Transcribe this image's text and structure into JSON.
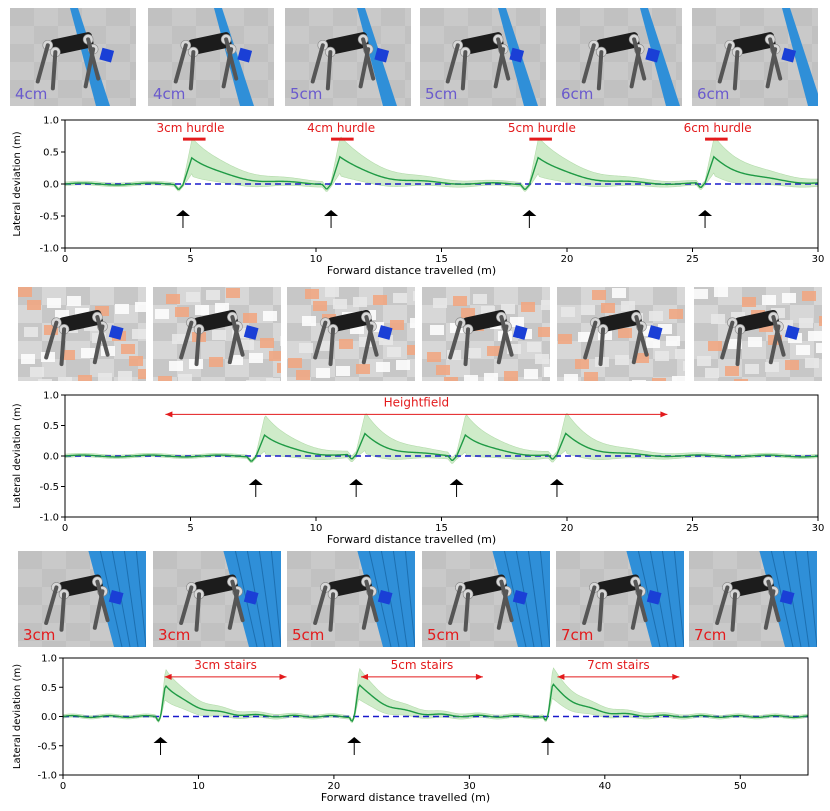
{
  "colors": {
    "mean_line": "#1f9a45",
    "band": "#bfe5b8",
    "zero_line": "#1a1acc",
    "annotation": "#e31a1c",
    "hurdle_label": "#6a5acd",
    "stairs_label": "#e31a1c",
    "obstacle_blue": "#2f8fd8",
    "terrain_orange": "#f2a47e",
    "cube": "#1a3fd6"
  },
  "rows": [
    {
      "tiles": [
        {
          "label": "4cm",
          "bg": "#c9c9c9",
          "obstacle": "bar"
        },
        {
          "label": "4cm",
          "bg": "#c9c9c9",
          "obstacle": "bar"
        },
        {
          "label": "5cm",
          "bg": "#c9c9c9",
          "obstacle": "bar"
        },
        {
          "label": "5cm",
          "bg": "#c9c9c9",
          "obstacle": "bar"
        },
        {
          "label": "6cm",
          "bg": "#c9c9c9",
          "obstacle": "bar"
        },
        {
          "label": "6cm",
          "bg": "#c9c9c9",
          "obstacle": "bar"
        }
      ]
    },
    {
      "tiles": [
        {
          "label": "",
          "bg": "#d7d7d7",
          "obstacle": "heightfield"
        },
        {
          "label": "",
          "bg": "#d7d7d7",
          "obstacle": "heightfield"
        },
        {
          "label": "",
          "bg": "#d7d7d7",
          "obstacle": "heightfield"
        },
        {
          "label": "",
          "bg": "#d7d7d7",
          "obstacle": "heightfield"
        },
        {
          "label": "",
          "bg": "#d7d7d7",
          "obstacle": "heightfield"
        },
        {
          "label": "",
          "bg": "#d7d7d7",
          "obstacle": "heightfield"
        }
      ]
    },
    {
      "tiles": [
        {
          "label": "3cm",
          "bg": "#c9c9c9",
          "obstacle": "stairs"
        },
        {
          "label": "3cm",
          "bg": "#c9c9c9",
          "obstacle": "stairs"
        },
        {
          "label": "5cm",
          "bg": "#c9c9c9",
          "obstacle": "stairs"
        },
        {
          "label": "5cm",
          "bg": "#c9c9c9",
          "obstacle": "stairs"
        },
        {
          "label": "7cm",
          "bg": "#c9c9c9",
          "obstacle": "stairs"
        },
        {
          "label": "7cm",
          "bg": "#c9c9c9",
          "obstacle": "stairs"
        }
      ]
    }
  ],
  "chart_data": [
    {
      "type": "line",
      "xlabel": "Forward distance travelled (m)",
      "ylabel": "Lateral deviation (m)",
      "xlim": [
        0,
        30
      ],
      "ylim": [
        -1.0,
        1.0
      ],
      "xticks": [
        0,
        5,
        10,
        15,
        20,
        25,
        30
      ],
      "yticks": [
        "1.0",
        "0.5",
        "0.0",
        "-0.5",
        "-1.0"
      ],
      "reference_line_y": 0.0,
      "events": [
        4.7,
        10.6,
        18.5,
        25.5
      ],
      "peak_mean": 0.42,
      "peak_band_upper": 0.7,
      "decay_length": 4.0,
      "annotations": [
        {
          "text": "3cm hurdle",
          "x": 5.0,
          "y": 0.78,
          "bar": [
            4.7,
            5.6
          ]
        },
        {
          "text": "4cm hurdle",
          "x": 11.0,
          "y": 0.78,
          "bar": [
            10.6,
            11.5
          ]
        },
        {
          "text": "5cm hurdle",
          "x": 19.0,
          "y": 0.78,
          "bar": [
            18.5,
            19.4
          ]
        },
        {
          "text": "6cm hurdle",
          "x": 26.0,
          "y": 0.78,
          "bar": [
            25.5,
            26.4
          ]
        }
      ]
    },
    {
      "type": "line",
      "xlabel": "Forward distance travelled (m)",
      "ylabel": "Lateral deviation (m)",
      "xlim": [
        0,
        30
      ],
      "ylim": [
        -1.0,
        1.0
      ],
      "xticks": [
        0,
        5,
        10,
        15,
        20,
        25,
        30
      ],
      "yticks": [
        "1.0",
        "0.5",
        "0.0",
        "-0.5",
        "-1.0"
      ],
      "reference_line_y": 0.0,
      "events": [
        7.6,
        11.6,
        15.6,
        19.6
      ],
      "peak_mean": 0.35,
      "peak_band_upper": 0.65,
      "decay_length": 3.0,
      "annotations": [
        {
          "text": "Heightfield",
          "x": 14.0,
          "y": 0.78,
          "arrow": [
            4.0,
            24.0
          ]
        }
      ]
    },
    {
      "type": "line",
      "xlabel": "Forward distance travelled (m)",
      "ylabel": "Lateral deviation (m)",
      "xlim": [
        0,
        55
      ],
      "ylim": [
        -1.0,
        1.0
      ],
      "xticks": [
        0,
        10,
        20,
        30,
        40,
        50
      ],
      "yticks": [
        "1.0",
        "0.5",
        "0.0",
        "-0.5",
        "-1.0"
      ],
      "reference_line_y": 0.0,
      "events": [
        7.2,
        21.5,
        35.8
      ],
      "peak_mean": 0.55,
      "peak_band_upper": 0.8,
      "decay_length": 6.0,
      "annotations": [
        {
          "text": "3cm stairs",
          "x": 12.0,
          "y": 0.78,
          "arrow": [
            7.5,
            16.5
          ]
        },
        {
          "text": "5cm stairs",
          "x": 26.5,
          "y": 0.78,
          "arrow": [
            22.0,
            31.0
          ]
        },
        {
          "text": "7cm stairs",
          "x": 41.0,
          "y": 0.78,
          "arrow": [
            36.5,
            45.5
          ]
        }
      ]
    }
  ]
}
